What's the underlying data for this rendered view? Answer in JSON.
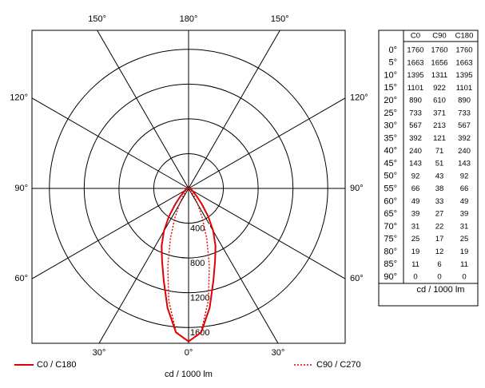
{
  "chart_data": {
    "type": "polar",
    "gammas": [
      {
        "value": 0,
        "label": "0°"
      },
      {
        "value": 5,
        "label": "5°"
      },
      {
        "value": 10,
        "label": "10°"
      },
      {
        "value": 15,
        "label": "15°"
      },
      {
        "value": 20,
        "label": "20°"
      },
      {
        "value": 25,
        "label": "25°"
      },
      {
        "value": 30,
        "label": "30°"
      },
      {
        "value": 35,
        "label": "35°"
      },
      {
        "value": 40,
        "label": "40°"
      },
      {
        "value": 45,
        "label": "45°"
      },
      {
        "value": 50,
        "label": "50°"
      },
      {
        "value": 55,
        "label": "55°"
      },
      {
        "value": 60,
        "label": "60°"
      },
      {
        "value": 65,
        "label": "65°"
      },
      {
        "value": 70,
        "label": "70°"
      },
      {
        "value": 75,
        "label": "75°"
      },
      {
        "value": 80,
        "label": "80°"
      },
      {
        "value": 85,
        "label": "85°"
      },
      {
        "value": 90,
        "label": "90°"
      }
    ],
    "series": [
      {
        "name": "C0",
        "values": [
          1760,
          1663,
          1395,
          1101,
          890,
          733,
          567,
          392,
          240,
          143,
          92,
          66,
          49,
          39,
          31,
          25,
          19,
          11,
          0
        ]
      },
      {
        "name": "C90",
        "values": [
          1760,
          1656,
          1311,
          922,
          610,
          371,
          213,
          121,
          71,
          51,
          43,
          38,
          33,
          27,
          22,
          17,
          12,
          6,
          0
        ]
      },
      {
        "name": "C180",
        "values": [
          1760,
          1663,
          1395,
          1101,
          890,
          733,
          567,
          392,
          240,
          143,
          92,
          66,
          49,
          39,
          31,
          25,
          19,
          11,
          0
        ]
      }
    ],
    "legend": [
      {
        "name": "C0 / C180",
        "color": "#e00000",
        "dash": "solid"
      },
      {
        "name": "C90 / C270",
        "color": "#e00000",
        "dash": "dotted"
      }
    ],
    "angle_ticks": [
      {
        "value": 0,
        "label": "0°"
      },
      {
        "value": 30,
        "label": "30°"
      },
      {
        "value": 60,
        "label": "60°"
      },
      {
        "value": 90,
        "label": "90°"
      },
      {
        "value": 120,
        "label": "120°"
      },
      {
        "value": 150,
        "label": "150°"
      },
      {
        "value": 180,
        "label": "180°"
      }
    ],
    "rlim": [
      0,
      1800
    ],
    "rticks": [
      400,
      800,
      1200,
      1600
    ],
    "unit": "cd / 1000 lm"
  }
}
